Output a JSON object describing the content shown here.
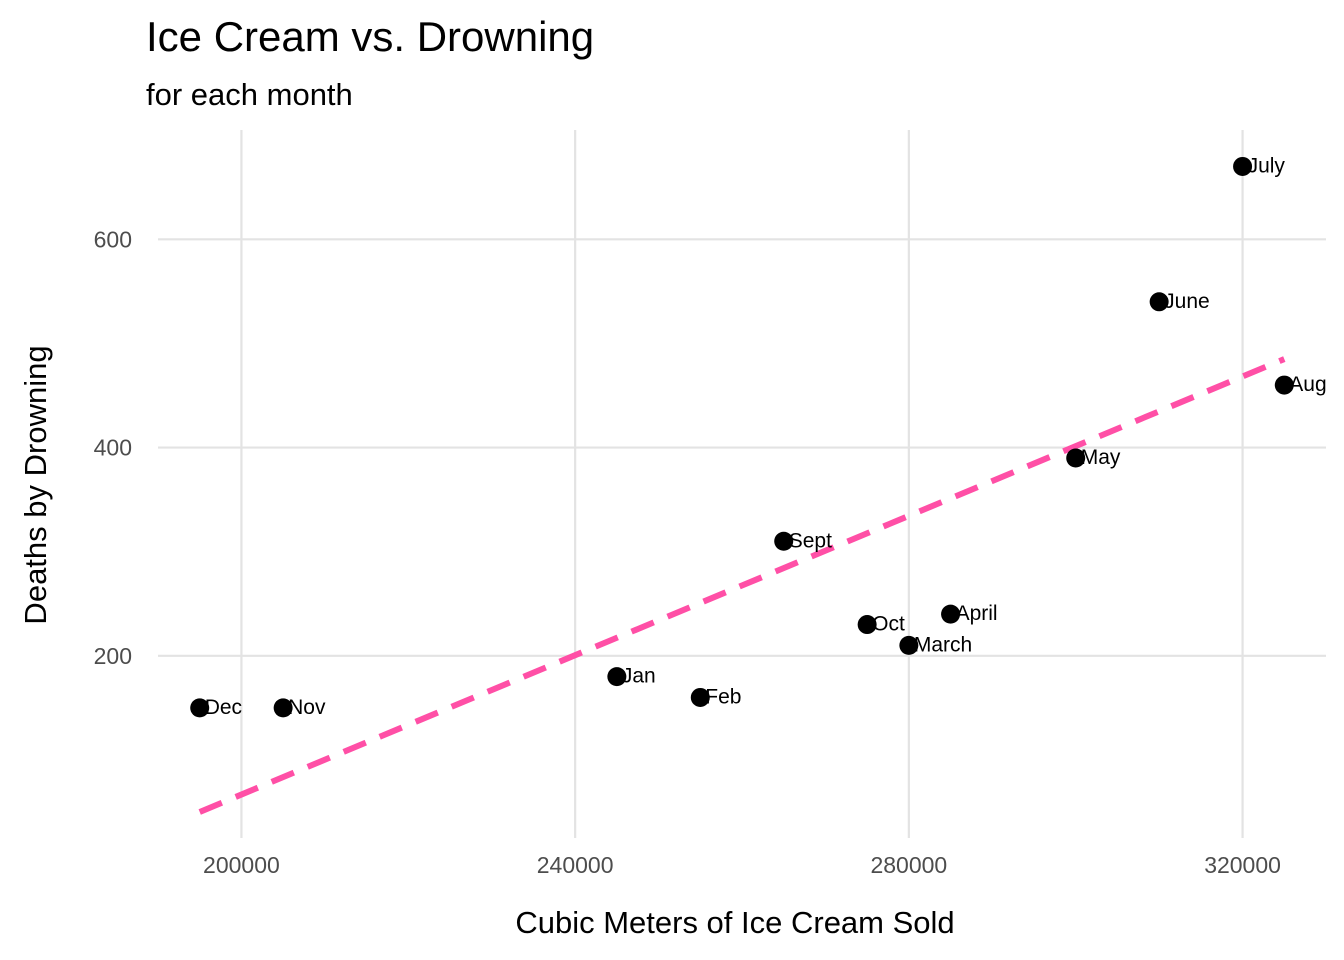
{
  "chart_data": {
    "type": "scatter",
    "title": "Ice Cream vs. Drowning",
    "subtitle": "for each month",
    "xlabel": "Cubic Meters of Ice Cream Sold",
    "ylabel": "Deaths by Drowning",
    "xlim": [
      190000,
      330000
    ],
    "ylim": [
      25,
      705
    ],
    "x_ticks": [
      200000,
      240000,
      280000,
      320000
    ],
    "y_ticks": [
      200,
      400,
      600
    ],
    "grid": true,
    "points": [
      {
        "label": "Dec",
        "x": 195000,
        "y": 150
      },
      {
        "label": "Nov",
        "x": 205000,
        "y": 150
      },
      {
        "label": "Jan",
        "x": 245000,
        "y": 180
      },
      {
        "label": "Feb",
        "x": 255000,
        "y": 160
      },
      {
        "label": "Sept",
        "x": 265000,
        "y": 310
      },
      {
        "label": "Oct",
        "x": 275000,
        "y": 230
      },
      {
        "label": "March",
        "x": 280000,
        "y": 210
      },
      {
        "label": "April",
        "x": 285000,
        "y": 240
      },
      {
        "label": "May",
        "x": 300000,
        "y": 390
      },
      {
        "label": "June",
        "x": 310000,
        "y": 540
      },
      {
        "label": "July",
        "x": 320000,
        "y": 670
      },
      {
        "label": "Aug",
        "x": 325000,
        "y": 460
      }
    ],
    "trend_line": {
      "style": "dashed",
      "color": "#ff4fa6",
      "start": {
        "x": 195000,
        "y": 50
      },
      "end": {
        "x": 325000,
        "y": 485
      }
    },
    "point_color": "#000000"
  }
}
